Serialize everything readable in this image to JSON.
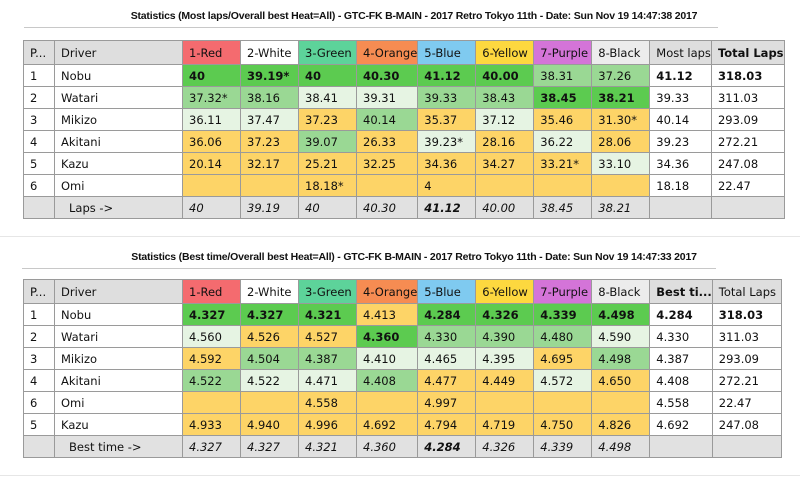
{
  "colors": {
    "red": "#f46b6f",
    "white": "#ffffff",
    "green": "#5dd39a",
    "orange": "#f68c52",
    "blue": "#7fcaf0",
    "yellow": "#fdd83f",
    "purple": "#d474d8",
    "black": "#ececec",
    "best": "#5ccb50",
    "good": "#9ad894",
    "fair": "#e6f4e3",
    "low": "#fdd467",
    "header": "#dedede"
  },
  "tables": [
    {
      "title": "Statistics (Most laps/Overall best Heat=All) - GTC-FK B-MAIN - 2017 Retro Tokyo 11th - Date: Sun Nov 19 14:47:38 2017",
      "headers": [
        "P...",
        "Driver",
        "1-Red",
        "2-White",
        "3-Green",
        "4-Orange",
        "5-Blue",
        "6-Yellow",
        "7-Purple",
        "8-Black",
        "Most laps",
        "Total Laps"
      ],
      "rows": [
        {
          "pos": "1",
          "driver": "Nobu",
          "heats": [
            "40",
            "39.19*",
            "40",
            "40.30",
            "41.12",
            "40.00",
            "38.31",
            "37.26"
          ],
          "shade": [
            "g1",
            "g1",
            "g1",
            "g1",
            "g1",
            "g1",
            "g2",
            "g2"
          ],
          "bold": [
            1,
            1,
            1,
            1,
            1,
            1,
            0,
            0
          ],
          "most": "41.12",
          "total": "318.03",
          "summary_bold": 1
        },
        {
          "pos": "2",
          "driver": "Watari",
          "heats": [
            "37.32*",
            "38.16",
            "38.41",
            "39.31",
            "39.33",
            "38.43",
            "38.45",
            "38.21"
          ],
          "shade": [
            "g2",
            "g2",
            "g3",
            "g3",
            "g2",
            "g2",
            "g1",
            "g1"
          ],
          "bold": [
            0,
            0,
            0,
            0,
            0,
            0,
            1,
            1
          ],
          "most": "39.33",
          "total": "311.03",
          "summary_bold": 0
        },
        {
          "pos": "3",
          "driver": "Mikizo",
          "heats": [
            "36.11",
            "37.47",
            "37.23",
            "40.14",
            "35.37",
            "37.12",
            "35.46",
            "31.30*"
          ],
          "shade": [
            "g3",
            "g3",
            "y",
            "g2",
            "y",
            "g3",
            "y",
            "y"
          ],
          "bold": [
            0,
            0,
            0,
            0,
            0,
            0,
            0,
            0
          ],
          "most": "40.14",
          "total": "293.09",
          "summary_bold": 0
        },
        {
          "pos": "4",
          "driver": "Akitani",
          "heats": [
            "36.06",
            "37.23",
            "39.07",
            "26.33",
            "39.23*",
            "28.16",
            "36.22",
            "28.06"
          ],
          "shade": [
            "y",
            "y",
            "g2",
            "y",
            "g3",
            "y",
            "g3",
            "y"
          ],
          "bold": [
            0,
            0,
            0,
            0,
            0,
            0,
            0,
            0
          ],
          "most": "39.23",
          "total": "272.21",
          "summary_bold": 0
        },
        {
          "pos": "5",
          "driver": "Kazu",
          "heats": [
            "20.14",
            "32.17",
            "25.21",
            "32.25",
            "34.36",
            "34.27",
            "33.21*",
            "33.10"
          ],
          "shade": [
            "y",
            "y",
            "y",
            "y",
            "y",
            "y",
            "y",
            "g3"
          ],
          "bold": [
            0,
            0,
            0,
            0,
            0,
            0,
            0,
            0
          ],
          "most": "34.36",
          "total": "247.08",
          "summary_bold": 0
        },
        {
          "pos": "6",
          "driver": "Omi",
          "heats": [
            "",
            "",
            "18.18*",
            "",
            "4",
            "",
            "",
            ""
          ],
          "shade": [
            "y",
            "y",
            "y",
            "y",
            "y",
            "y",
            "y",
            "y"
          ],
          "bold": [
            0,
            0,
            0,
            0,
            0,
            0,
            0,
            0
          ],
          "most": "18.18",
          "total": "22.47",
          "summary_bold": 0
        }
      ],
      "footer": {
        "label": "Laps ->",
        "values": [
          "40",
          "39.19",
          "40",
          "40.30",
          "41.12",
          "40.00",
          "38.45",
          "38.21"
        ],
        "bold_index": 4
      },
      "header_bold_col": 11
    },
    {
      "title": "Statistics (Best time/Overall best Heat=All) - GTC-FK B-MAIN - 2017 Retro Tokyo 11th - Date: Sun Nov 19 14:47:33 2017",
      "headers": [
        "P...",
        "Driver",
        "1-Red",
        "2-White",
        "3-Green",
        "4-Orange",
        "5-Blue",
        "6-Yellow",
        "7-Purple",
        "8-Black",
        "Best ti...",
        "Total Laps"
      ],
      "rows": [
        {
          "pos": "1",
          "driver": "Nobu",
          "heats": [
            "4.327",
            "4.327",
            "4.321",
            "4.413",
            "4.284",
            "4.326",
            "4.339",
            "4.498"
          ],
          "shade": [
            "g1",
            "g1",
            "g1",
            "y",
            "g1",
            "g1",
            "g1",
            "g1"
          ],
          "bold": [
            1,
            1,
            1,
            0,
            1,
            1,
            1,
            1
          ],
          "most": "4.284",
          "total": "318.03",
          "summary_bold": 1
        },
        {
          "pos": "2",
          "driver": "Watari",
          "heats": [
            "4.560",
            "4.526",
            "4.527",
            "4.360",
            "4.330",
            "4.390",
            "4.480",
            "4.590"
          ],
          "shade": [
            "g3",
            "y",
            "y",
            "g1",
            "g2",
            "g2",
            "g2",
            "g3"
          ],
          "bold": [
            0,
            0,
            0,
            1,
            0,
            0,
            0,
            0
          ],
          "most": "4.330",
          "total": "311.03",
          "summary_bold": 0
        },
        {
          "pos": "3",
          "driver": "Mikizo",
          "heats": [
            "4.592",
            "4.504",
            "4.387",
            "4.410",
            "4.465",
            "4.395",
            "4.695",
            "4.498"
          ],
          "shade": [
            "y",
            "g2",
            "g2",
            "g3",
            "g3",
            "g3",
            "y",
            "g2"
          ],
          "bold": [
            0,
            0,
            0,
            0,
            0,
            0,
            0,
            0
          ],
          "most": "4.387",
          "total": "293.09",
          "summary_bold": 0
        },
        {
          "pos": "4",
          "driver": "Akitani",
          "heats": [
            "4.522",
            "4.522",
            "4.471",
            "4.408",
            "4.477",
            "4.449",
            "4.572",
            "4.650"
          ],
          "shade": [
            "g2",
            "g3",
            "g3",
            "g2",
            "y",
            "y",
            "g3",
            "y"
          ],
          "bold": [
            0,
            0,
            0,
            0,
            0,
            0,
            0,
            0
          ],
          "most": "4.408",
          "total": "272.21",
          "summary_bold": 0
        },
        {
          "pos": "6",
          "driver": "Omi",
          "heats": [
            "",
            "",
            "4.558",
            "",
            "4.997",
            "",
            "",
            ""
          ],
          "shade": [
            "y",
            "y",
            "y",
            "y",
            "y",
            "y",
            "y",
            "y"
          ],
          "bold": [
            0,
            0,
            0,
            0,
            0,
            0,
            0,
            0
          ],
          "most": "4.558",
          "total": "22.47",
          "summary_bold": 0
        },
        {
          "pos": "5",
          "driver": "Kazu",
          "heats": [
            "4.933",
            "4.940",
            "4.996",
            "4.692",
            "4.794",
            "4.719",
            "4.750",
            "4.826"
          ],
          "shade": [
            "y",
            "y",
            "y",
            "y",
            "y",
            "y",
            "y",
            "y"
          ],
          "bold": [
            0,
            0,
            0,
            0,
            0,
            0,
            0,
            0
          ],
          "most": "4.692",
          "total": "247.08",
          "summary_bold": 0
        }
      ],
      "footer": {
        "label": "Best time ->",
        "values": [
          "4.327",
          "4.327",
          "4.321",
          "4.360",
          "4.284",
          "4.326",
          "4.339",
          "4.498"
        ],
        "bold_index": 4
      },
      "header_bold_col": 10
    }
  ]
}
